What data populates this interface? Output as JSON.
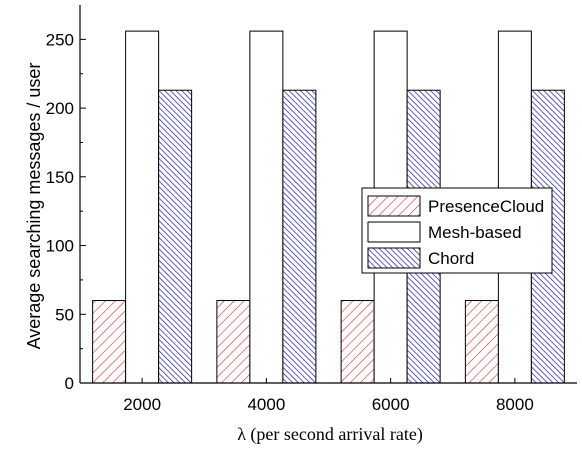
{
  "chart_data": {
    "type": "bar",
    "title": "",
    "xlabel": "λ (per second arrival rate)",
    "ylabel": "Average searching messages / user",
    "categories": [
      "2000",
      "4000",
      "6000",
      "8000"
    ],
    "ylim": [
      0,
      275
    ],
    "yticks": [
      0,
      50,
      100,
      150,
      200,
      250
    ],
    "grid": false,
    "legend_position": "right",
    "series": [
      {
        "name": "PresenceCloud",
        "values": [
          60,
          60,
          60,
          60
        ],
        "color": "#e03030",
        "pattern": "forward-diagonal-hatch"
      },
      {
        "name": "Mesh-based",
        "values": [
          256,
          256,
          256,
          256
        ],
        "color": "#000000",
        "pattern": "none"
      },
      {
        "name": "Chord",
        "values": [
          213,
          213,
          213,
          213
        ],
        "color": "#1a1aa0",
        "pattern": "back-diagonal-hatch"
      }
    ]
  }
}
